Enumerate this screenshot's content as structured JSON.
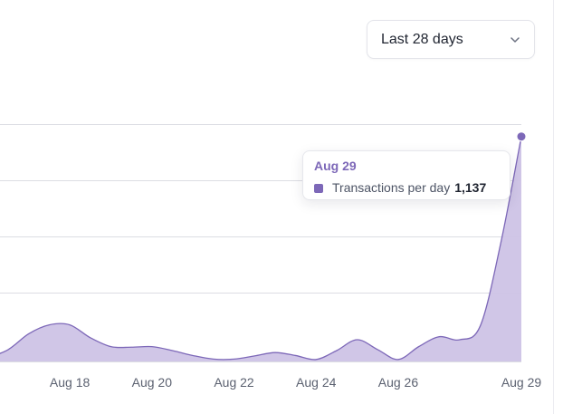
{
  "range_selector": {
    "label": "Last 28 days"
  },
  "tooltip": {
    "date": "Aug 29",
    "series": "Transactions per day",
    "value": "1,137"
  },
  "colors": {
    "accent": "#7d68b8",
    "fill": "#cdc3e6",
    "grid": "#dcdde3"
  },
  "chart_data": {
    "type": "area",
    "title": "",
    "xlabel": "",
    "ylabel": "Transactions per day",
    "series": [
      {
        "name": "Transactions per day",
        "x": [
          16,
          16.5,
          17,
          17.5,
          18,
          18.5,
          19,
          19.5,
          20,
          20.5,
          21,
          21.5,
          22,
          22.5,
          23,
          23.5,
          24,
          24.5,
          25,
          25.5,
          26,
          26.5,
          27,
          27.5,
          28,
          28.5,
          29
        ],
        "values": [
          18,
          60,
          140,
          185,
          185,
          120,
          75,
          72,
          75,
          55,
          30,
          12,
          12,
          28,
          45,
          30,
          10,
          55,
          110,
          60,
          10,
          75,
          125,
          110,
          180,
          600,
          1137
        ]
      }
    ],
    "x_tick_labels": [
      {
        "x": 18,
        "label": "Aug 18"
      },
      {
        "x": 20,
        "label": "Aug 20"
      },
      {
        "x": 22,
        "label": "Aug 22"
      },
      {
        "x": 24,
        "label": "Aug 24"
      },
      {
        "x": 26,
        "label": "Aug 26"
      },
      {
        "x": 29,
        "label": "Aug 29"
      }
    ],
    "xlim": [
      16.3,
      29
    ],
    "ylim": [
      0,
      1137
    ],
    "y_gridlines": [
      284,
      568,
      853,
      1137
    ],
    "highlight_x": 29
  }
}
